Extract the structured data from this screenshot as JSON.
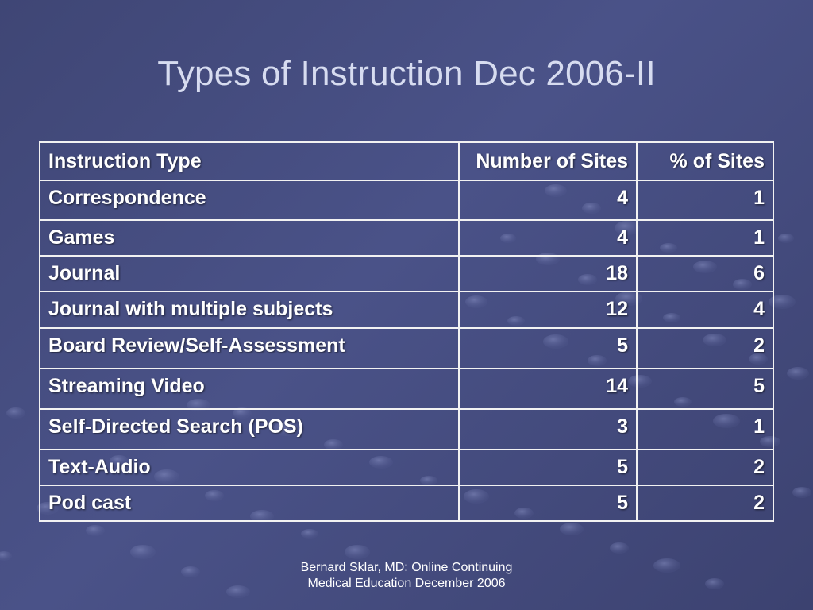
{
  "slide": {
    "title": "Types of Instruction Dec 2006-II",
    "table": {
      "headers": [
        "Instruction Type",
        "Number of Sites",
        "% of Sites"
      ],
      "rows": [
        {
          "type": "Correspondence",
          "number": "4",
          "percent": "1"
        },
        {
          "type": "Games",
          "number": "4",
          "percent": "1"
        },
        {
          "type": "Journal",
          "number": "18",
          "percent": "6"
        },
        {
          "type": "Journal with multiple subjects",
          "number": "12",
          "percent": "4"
        },
        {
          "type": "Board Review/Self-Assessment",
          "number": "5",
          "percent": "2"
        },
        {
          "type": "Streaming Video",
          "number": "14",
          "percent": "5"
        },
        {
          "type": "Self-Directed Search (POS)",
          "number": "3",
          "percent": "1"
        },
        {
          "type": "Text-Audio",
          "number": "5",
          "percent": "2"
        },
        {
          "type": "Pod cast",
          "number": "5",
          "percent": "2"
        }
      ]
    },
    "footer": {
      "line1": "Bernard Sklar, MD: Online Continuing",
      "line2": "Medical Education December 2006"
    }
  },
  "theme": {
    "background": "#444b7e",
    "title_color": "#d7dcf0",
    "text_color": "#ffffff",
    "border_color": "#f2f2f2",
    "decoration": "bubble-pattern"
  }
}
